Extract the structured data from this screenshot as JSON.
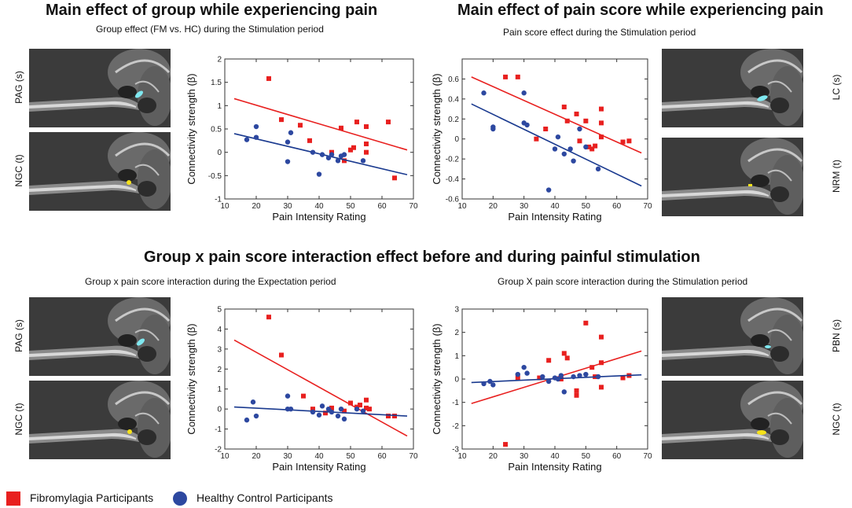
{
  "headings": {
    "group_effect": "Main effect of group while experiencing pain",
    "pain_effect": "Main effect of pain score while experiencing pain",
    "interaction": "Group x pain score interaction effect before and during painful stimulation"
  },
  "subtitles": {
    "panel1": "Group effect (FM vs. HC) during the Stimulation period",
    "panel2": "Pain score effect during the Stimulation period",
    "panel3": "Group x pain score interaction during the Expectation period",
    "panel4": "Group X pain score interaction during the Stimulation period"
  },
  "brain_labels": {
    "p1_top": "PAG (s)",
    "p1_bottom": "NGC (t)",
    "p2_top": "LC (s)",
    "p2_bottom": "NRM (t)",
    "p3_top": "PAG (s)",
    "p3_bottom": "NGC (t)",
    "p4_top": "PBN (s)",
    "p4_bottom": "NGC (t)"
  },
  "legend": {
    "fm": "Fibromylagia Participants",
    "hc": "Healthy Control Participants"
  },
  "colors": {
    "fm": "#e8201f",
    "hc": "#2d48a0",
    "fm_line": "#e8201f",
    "hc_line": "#1a3a8f",
    "roi_cyan": "#7fe8f0",
    "roi_yellow": "#f5e21a"
  },
  "chart_data": [
    {
      "type": "scatter",
      "xlabel": "Pain Intensity Rating",
      "ylabel": "Connectivity strength (β)",
      "xlim": [
        10,
        70
      ],
      "ylim": [
        -1,
        2
      ],
      "xticks": [
        10,
        20,
        30,
        40,
        50,
        60,
        70
      ],
      "yticks": [
        -1,
        -0.5,
        0,
        0.5,
        1,
        1.5,
        2
      ],
      "series": [
        {
          "name": "Fibromylagia Participants",
          "points": [
            [
              24,
              1.58
            ],
            [
              28,
              0.7
            ],
            [
              34,
              0.58
            ],
            [
              37,
              0.25
            ],
            [
              44,
              0.0
            ],
            [
              47,
              0.52
            ],
            [
              48,
              -0.18
            ],
            [
              50,
              0.05
            ],
            [
              51,
              0.1
            ],
            [
              52,
              0.65
            ],
            [
              55,
              0.55
            ],
            [
              55,
              0.18
            ],
            [
              55,
              0.0
            ],
            [
              62,
              0.65
            ],
            [
              64,
              -0.55
            ]
          ],
          "fit": [
            [
              13,
              1.15
            ],
            [
              68,
              0.05
            ]
          ]
        },
        {
          "name": "Healthy Control Participants",
          "points": [
            [
              17,
              0.27
            ],
            [
              20,
              0.32
            ],
            [
              20,
              0.55
            ],
            [
              30,
              -0.2
            ],
            [
              30,
              0.22
            ],
            [
              31,
              0.42
            ],
            [
              38,
              0.0
            ],
            [
              40,
              -0.47
            ],
            [
              41,
              -0.05
            ],
            [
              43,
              -0.12
            ],
            [
              44,
              -0.05
            ],
            [
              46,
              -0.18
            ],
            [
              47,
              -0.08
            ],
            [
              48,
              -0.05
            ],
            [
              54,
              -0.18
            ]
          ],
          "fit": [
            [
              13,
              0.4
            ],
            [
              68,
              -0.48
            ]
          ]
        }
      ]
    },
    {
      "type": "scatter",
      "xlabel": "Pain Intensity Rating",
      "ylabel": "Connectivity strength (β)",
      "xlim": [
        10,
        70
      ],
      "ylim": [
        -0.6,
        0.8
      ],
      "xticks": [
        10,
        20,
        30,
        40,
        50,
        60,
        70
      ],
      "yticks": [
        -0.6,
        -0.4,
        -0.2,
        0,
        0.2,
        0.4,
        0.6
      ],
      "series": [
        {
          "name": "Fibromylagia Participants",
          "points": [
            [
              24,
              0.62
            ],
            [
              28,
              0.62
            ],
            [
              34,
              0.0
            ],
            [
              37,
              0.1
            ],
            [
              43,
              0.32
            ],
            [
              44,
              0.18
            ],
            [
              47,
              0.25
            ],
            [
              48,
              -0.02
            ],
            [
              50,
              0.18
            ],
            [
              51,
              -0.08
            ],
            [
              52,
              -0.1
            ],
            [
              53,
              -0.07
            ],
            [
              55,
              0.3
            ],
            [
              55,
              0.16
            ],
            [
              55,
              0.02
            ],
            [
              62,
              -0.03
            ],
            [
              64,
              -0.02
            ]
          ],
          "fit": [
            [
              13,
              0.62
            ],
            [
              68,
              -0.14
            ]
          ]
        },
        {
          "name": "Healthy Control Participants",
          "points": [
            [
              17,
              0.46
            ],
            [
              20,
              0.12
            ],
            [
              20,
              0.1
            ],
            [
              30,
              0.46
            ],
            [
              30,
              0.16
            ],
            [
              31,
              0.14
            ],
            [
              38,
              -0.51
            ],
            [
              40,
              -0.1
            ],
            [
              41,
              0.02
            ],
            [
              43,
              -0.15
            ],
            [
              45,
              -0.1
            ],
            [
              46,
              -0.22
            ],
            [
              48,
              0.1
            ],
            [
              50,
              -0.08
            ],
            [
              54,
              -0.3
            ]
          ],
          "fit": [
            [
              13,
              0.35
            ],
            [
              68,
              -0.47
            ]
          ]
        }
      ]
    },
    {
      "type": "scatter",
      "xlabel": "Pain Intensity Rating",
      "ylabel": "Connectivity strength (β)",
      "xlim": [
        10,
        70
      ],
      "ylim": [
        -2,
        5
      ],
      "xticks": [
        10,
        20,
        30,
        40,
        50,
        60,
        70
      ],
      "yticks": [
        -2,
        -1,
        0,
        1,
        2,
        3,
        4,
        5
      ],
      "series": [
        {
          "name": "Fibromylagia Participants",
          "points": [
            [
              24,
              4.6
            ],
            [
              28,
              2.7
            ],
            [
              35,
              0.65
            ],
            [
              38,
              0.0
            ],
            [
              42,
              -0.2
            ],
            [
              44,
              0.05
            ],
            [
              48,
              -0.1
            ],
            [
              50,
              0.3
            ],
            [
              52,
              0.1
            ],
            [
              53,
              0.2
            ],
            [
              55,
              0.05
            ],
            [
              55,
              0.45
            ],
            [
              56,
              0.0
            ],
            [
              62,
              -0.35
            ],
            [
              64,
              -0.35
            ]
          ],
          "fit": [
            [
              13,
              3.45
            ],
            [
              68,
              -1.35
            ]
          ]
        },
        {
          "name": "Healthy Control Participants",
          "points": [
            [
              17,
              -0.55
            ],
            [
              19,
              0.35
            ],
            [
              20,
              -0.35
            ],
            [
              30,
              0.65
            ],
            [
              30,
              0.0
            ],
            [
              31,
              0.0
            ],
            [
              38,
              -0.15
            ],
            [
              40,
              -0.3
            ],
            [
              41,
              0.15
            ],
            [
              43,
              0.0
            ],
            [
              44,
              -0.15
            ],
            [
              46,
              -0.35
            ],
            [
              47,
              0.0
            ],
            [
              48,
              -0.5
            ],
            [
              52,
              0.0
            ],
            [
              54,
              -0.1
            ]
          ],
          "fit": [
            [
              13,
              0.1
            ],
            [
              68,
              -0.35
            ]
          ]
        }
      ]
    },
    {
      "type": "scatter",
      "xlabel": "Pain Intensity Rating",
      "ylabel": "Connectivity strength (β)",
      "xlim": [
        10,
        70
      ],
      "ylim": [
        -3,
        3
      ],
      "xticks": [
        10,
        20,
        30,
        40,
        50,
        60,
        70
      ],
      "yticks": [
        -3,
        -2,
        -1,
        0,
        1,
        2,
        3
      ],
      "series": [
        {
          "name": "Fibromylagia Participants",
          "points": [
            [
              24,
              -2.8
            ],
            [
              28,
              0.05
            ],
            [
              35,
              0.05
            ],
            [
              38,
              0.8
            ],
            [
              42,
              0.0
            ],
            [
              43,
              1.1
            ],
            [
              44,
              0.9
            ],
            [
              47,
              -0.5
            ],
            [
              47,
              -0.7
            ],
            [
              50,
              2.4
            ],
            [
              52,
              0.5
            ],
            [
              53,
              0.1
            ],
            [
              55,
              1.8
            ],
            [
              55,
              0.7
            ],
            [
              55,
              -0.35
            ],
            [
              62,
              0.05
            ],
            [
              64,
              0.15
            ]
          ],
          "fit": [
            [
              13,
              -1.05
            ],
            [
              68,
              1.2
            ]
          ]
        },
        {
          "name": "Healthy Control Participants",
          "points": [
            [
              17,
              -0.2
            ],
            [
              19,
              -0.1
            ],
            [
              20,
              -0.25
            ],
            [
              28,
              0.2
            ],
            [
              30,
              0.5
            ],
            [
              31,
              0.25
            ],
            [
              36,
              0.1
            ],
            [
              38,
              -0.1
            ],
            [
              40,
              0.05
            ],
            [
              41,
              0.0
            ],
            [
              42,
              0.15
            ],
            [
              43,
              -0.55
            ],
            [
              46,
              0.1
            ],
            [
              48,
              0.15
            ],
            [
              50,
              0.2
            ],
            [
              54,
              0.1
            ]
          ],
          "fit": [
            [
              13,
              -0.15
            ],
            [
              68,
              0.18
            ]
          ]
        }
      ]
    }
  ]
}
